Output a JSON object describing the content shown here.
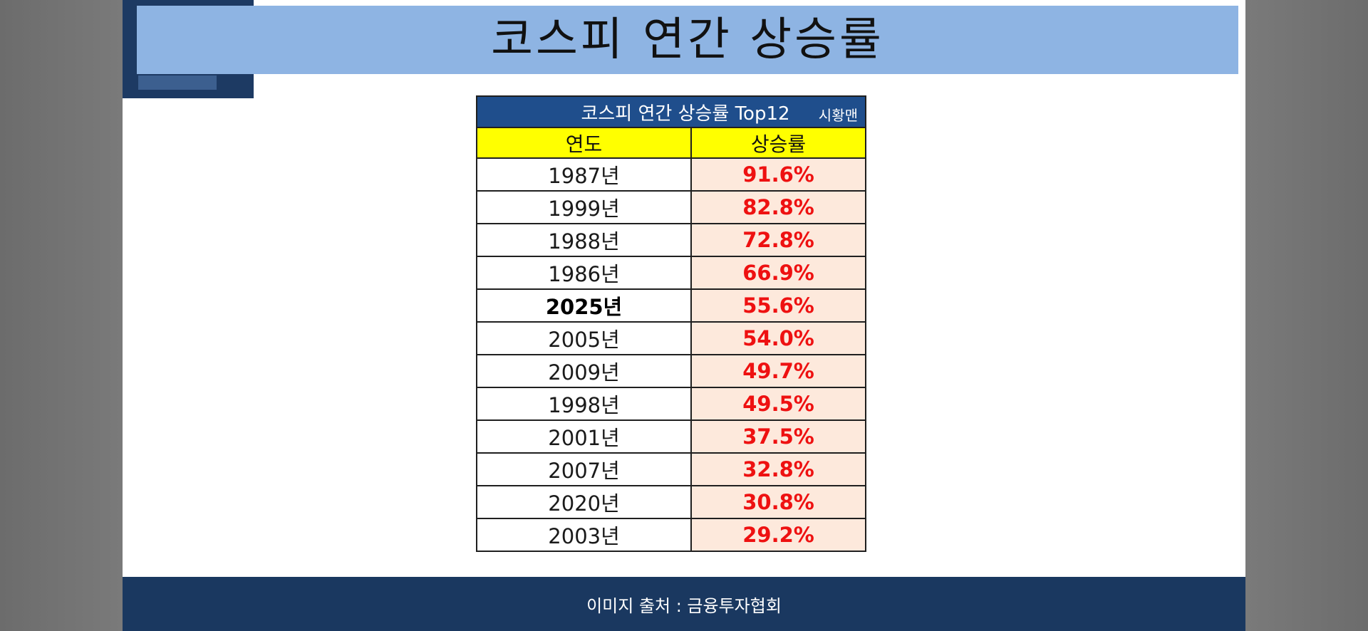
{
  "slide": {
    "title": "코스피 연간 상승률"
  },
  "table": {
    "header_title": "코스피 연간 상승률 Top12",
    "header_credit": "시황맨",
    "col_year": "연도",
    "col_rate": "상승률",
    "rows": [
      {
        "year": "1987년",
        "rate": "91.6%"
      },
      {
        "year": "1999년",
        "rate": "82.8%"
      },
      {
        "year": "1988년",
        "rate": "72.8%"
      },
      {
        "year": "1986년",
        "rate": "66.9%"
      },
      {
        "year": "2025년",
        "rate": "55.6%"
      },
      {
        "year": "2005년",
        "rate": "54.0%"
      },
      {
        "year": "2009년",
        "rate": "49.7%"
      },
      {
        "year": "1998년",
        "rate": "49.5%"
      },
      {
        "year": "2001년",
        "rate": "37.5%"
      },
      {
        "year": "2007년",
        "rate": "32.8%"
      },
      {
        "year": "2020년",
        "rate": "30.8%"
      },
      {
        "year": "2003년",
        "rate": "29.2%"
      }
    ]
  },
  "footer": {
    "source": "이미지 출처 : 금융투자협회"
  },
  "colors": {
    "title_bar": "#8eb4e3",
    "table_header": "#1f4e8c",
    "column_header": "#ffff00",
    "rate_cell": "#fde9dc",
    "rate_text": "#ee1111",
    "footer": "#1a3860"
  }
}
